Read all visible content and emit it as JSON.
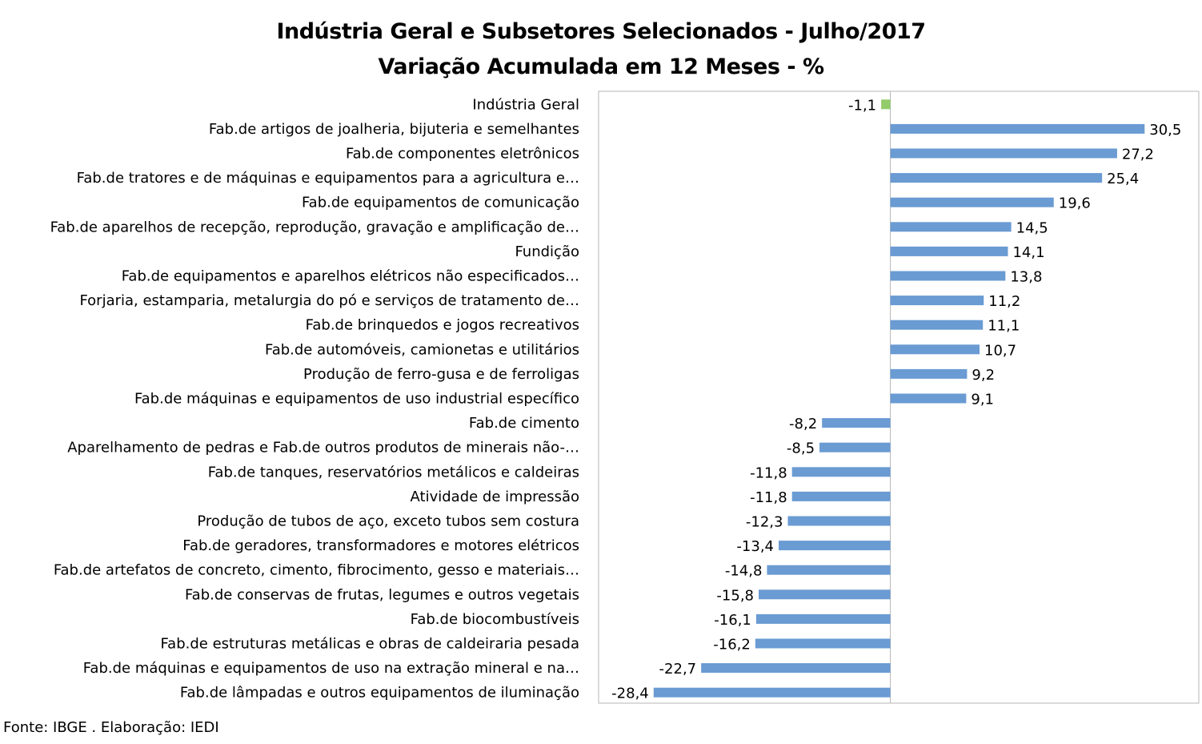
{
  "chart_data": {
    "type": "bar",
    "orientation": "horizontal",
    "title": "Indústria Geral e Subsetores Selecionados - Julho/2017",
    "subtitle": "Variação Acumulada em 12 Meses - %",
    "categories": [
      "Indústria Geral",
      "Fab.de artigos de joalheria, bijuteria e semelhantes",
      "Fab.de componentes eletrônicos",
      "Fab.de tratores e de máquinas e equipamentos para a agricultura e…",
      "Fab.de equipamentos de comunicação",
      "Fab.de aparelhos de recepção, reprodução, gravação e amplificação de…",
      "Fundição",
      "Fab.de equipamentos e aparelhos elétricos não especificados…",
      "Forjaria, estamparia, metalurgia do pó e serviços de tratamento de…",
      "Fab.de brinquedos e jogos recreativos",
      "Fab.de automóveis, camionetas e utilitários",
      "Produção de ferro-gusa e de ferroligas",
      "Fab.de máquinas e equipamentos de uso industrial específico",
      "Fab.de cimento",
      "Aparelhamento de pedras e Fab.de outros produtos de minerais não-…",
      "Fab.de tanques, reservatórios metálicos e caldeiras",
      "Atividade de impressão",
      "Produção de tubos de aço, exceto tubos sem costura",
      "Fab.de geradores, transformadores e motores elétricos",
      "Fab.de artefatos de concreto, cimento, fibrocimento, gesso e materiais…",
      "Fab.de conservas de frutas, legumes e outros vegetais",
      "Fab.de biocombustíveis",
      "Fab.de estruturas metálicas e obras de caldeiraria pesada",
      "Fab.de máquinas e equipamentos de uso na extração mineral e na…",
      "Fab.de lâmpadas e outros equipamentos de iluminação"
    ],
    "values": [
      -1.1,
      30.5,
      27.2,
      25.4,
      19.6,
      14.5,
      14.1,
      13.8,
      11.2,
      11.1,
      10.7,
      9.2,
      9.1,
      -8.2,
      -8.5,
      -11.8,
      -11.8,
      -12.3,
      -13.4,
      -14.8,
      -15.8,
      -16.1,
      -16.2,
      -22.7,
      -28.4
    ],
    "value_labels": [
      "-1,1",
      "30,5",
      "27,2",
      "25,4",
      "19,6",
      "14,5",
      "14,1",
      "13,8",
      "11,2",
      "11,1",
      "10,7",
      "9,2",
      "9,1",
      "-8,2",
      "-8,5",
      "-11,8",
      "-11,8",
      "-12,3",
      "-13,4",
      "-14,8",
      "-15,8",
      "-16,1",
      "-16,2",
      "-22,7",
      "-28,4"
    ],
    "highlight_index": 0,
    "xlim": [
      -35,
      37
    ],
    "grid": false,
    "colors": {
      "bar": "#6A9BD3",
      "highlight": "#92CC6A",
      "axis": "#B7B7B7"
    }
  },
  "footer": {
    "source": "Fonte: IBGE . Elaboração: IEDI"
  }
}
